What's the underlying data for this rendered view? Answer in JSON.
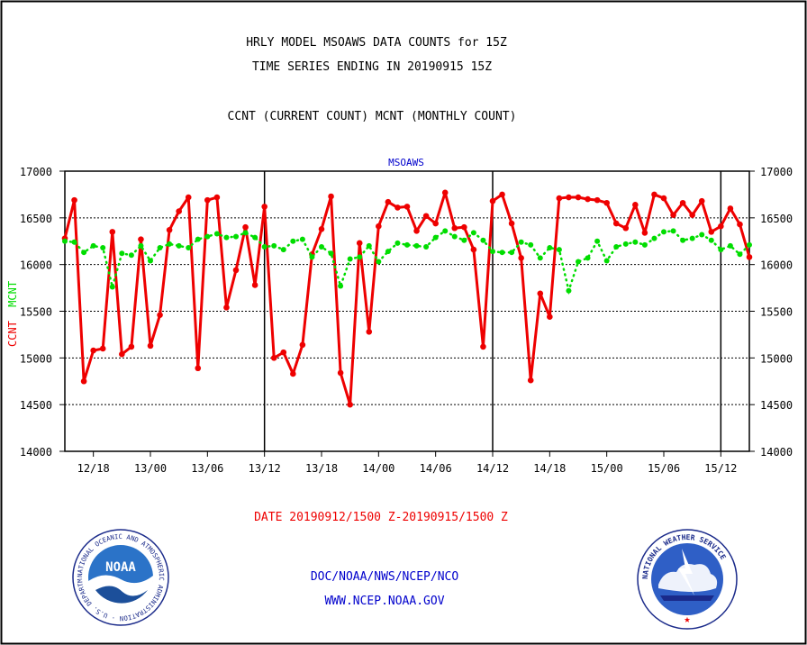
{
  "header": {
    "title_line1": "HRLY MODEL MSOAWS DATA COUNTS for 15Z",
    "title_line2": "TIME SERIES ENDING IN 20190915 15Z",
    "subtitle": "CCNT (CURRENT COUNT) MCNT (MONTHLY COUNT)"
  },
  "footer": {
    "date_range": "DATE 20190912/1500 Z-20190915/1500 Z",
    "org": "DOC/NOAA/NWS/NCEP/NCO",
    "url": "WWW.NCEP.NOAA.GOV"
  },
  "logos": {
    "noaa_text": "NOAA",
    "noaa_ring": "NATIONAL OCEANIC AND ATMOSPHERIC ADMINISTRATION · U.S. DEPARTMENT OF COMMERCE ·",
    "nws_ring": "NATIONAL WEATHER SERVICE"
  },
  "colors": {
    "ccnt": "#ee0000",
    "mcnt": "#00dd00",
    "text": "#000000",
    "legend_label": "#0000cc",
    "date_text": "#ee0000",
    "footer_text": "#0000cc"
  },
  "chart_data": {
    "type": "line",
    "panel_label": "MSOAWS",
    "ylabel_ccnt": "CCNT",
    "ylabel_mcnt": "MCNT",
    "ylim": [
      14000,
      17000
    ],
    "yticks": [
      14000,
      14500,
      15000,
      15500,
      16000,
      16500,
      17000
    ],
    "grid": true,
    "x_start_hour": 15,
    "x_end_hour": 87,
    "xticks": [
      {
        "hour": 18,
        "label": "12/18"
      },
      {
        "hour": 24,
        "label": "13/00"
      },
      {
        "hour": 30,
        "label": "13/06"
      },
      {
        "hour": 36,
        "label": "13/12"
      },
      {
        "hour": 42,
        "label": "13/18"
      },
      {
        "hour": 48,
        "label": "14/00"
      },
      {
        "hour": 54,
        "label": "14/06"
      },
      {
        "hour": 60,
        "label": "14/12"
      },
      {
        "hour": 66,
        "label": "14/18"
      },
      {
        "hour": 72,
        "label": "15/00"
      },
      {
        "hour": 78,
        "label": "15/06"
      },
      {
        "hour": 84,
        "label": "15/12"
      }
    ],
    "day_boundaries": [
      36,
      60,
      84
    ],
    "series": [
      {
        "name": "CCNT",
        "values": [
          16280,
          16690,
          14750,
          15080,
          15100,
          16350,
          15040,
          15120,
          16270,
          15130,
          15460,
          16370,
          16570,
          16720,
          14890,
          16690,
          16720,
          15540,
          15940,
          16400,
          15780,
          16620,
          15000,
          15060,
          14830,
          15140,
          16110,
          16380,
          16730,
          14840,
          14500,
          16230,
          15280,
          16410,
          16670,
          16610,
          16620,
          16360,
          16520,
          16440,
          16770,
          16390,
          16400,
          16160,
          15120,
          16680,
          16750,
          16440,
          16070,
          14760,
          15690,
          15440,
          16710,
          16720,
          16720,
          16700,
          16690,
          16660,
          16440,
          16390,
          16640,
          16340,
          16750,
          16710,
          16530,
          16660,
          16530,
          16680,
          16350,
          16410,
          16600,
          16430,
          16080
        ]
      },
      {
        "name": "MCNT",
        "values": [
          16250,
          16240,
          16130,
          16200,
          16180,
          15760,
          16120,
          16100,
          16200,
          16040,
          16180,
          16220,
          16200,
          16180,
          16270,
          16300,
          16330,
          16290,
          16300,
          16340,
          16290,
          16190,
          16200,
          16160,
          16250,
          16270,
          16080,
          16190,
          16120,
          15770,
          16060,
          16080,
          16200,
          16030,
          16140,
          16230,
          16210,
          16200,
          16190,
          16290,
          16360,
          16300,
          16260,
          16340,
          16260,
          16140,
          16130,
          16130,
          16240,
          16210,
          16070,
          16180,
          16160,
          15720,
          16030,
          16070,
          16250,
          16040,
          16190,
          16220,
          16240,
          16210,
          16280,
          16350,
          16360,
          16260,
          16280,
          16320,
          16260,
          16160,
          16200,
          16110,
          16210
        ]
      }
    ]
  }
}
